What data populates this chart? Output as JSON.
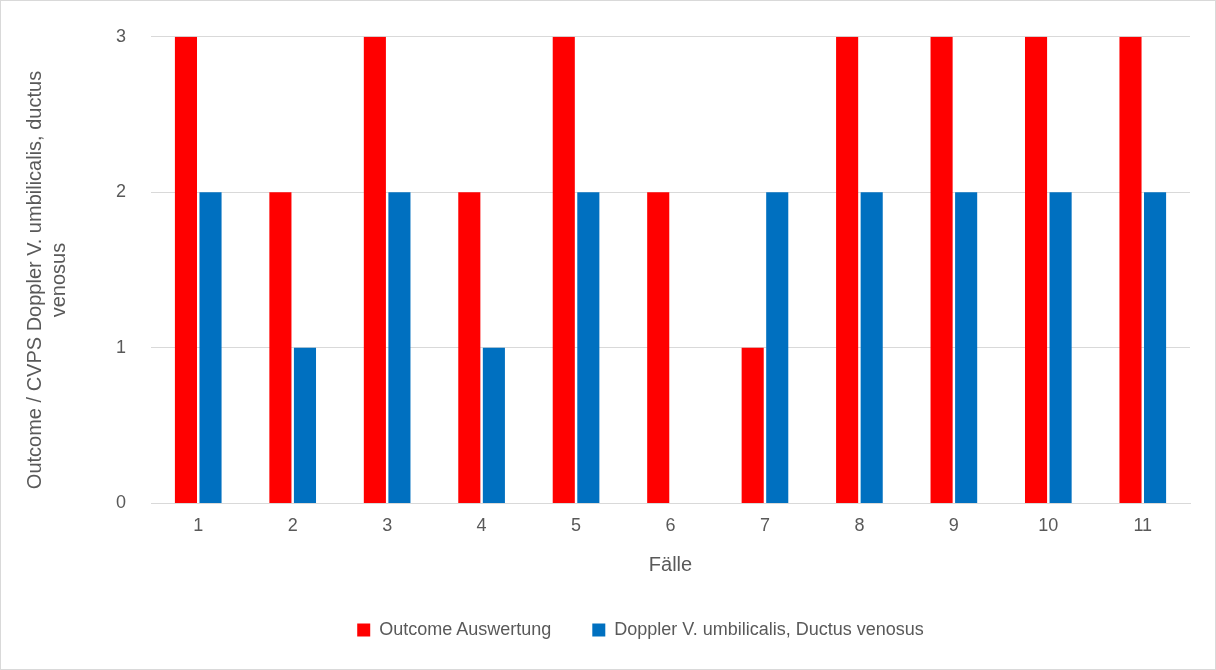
{
  "chart_data": {
    "type": "bar",
    "xlabel": "Fälle",
    "ylabel": "Outcome / CVPS Doppler V. umbilicalis, ductus venosus",
    "categories": [
      "1",
      "2",
      "3",
      "4",
      "5",
      "6",
      "7",
      "8",
      "9",
      "10",
      "11"
    ],
    "series": [
      {
        "name": "Outcome Auswertung",
        "color": "#ff0000",
        "values": [
          3,
          2,
          3,
          2,
          3,
          2,
          1,
          3,
          3,
          3,
          3
        ]
      },
      {
        "name": "Doppler V. umbilicalis, Ductus venosus",
        "color": "#0070c0",
        "values": [
          2,
          1,
          2,
          1,
          2,
          0,
          2,
          2,
          2,
          2,
          2
        ]
      }
    ],
    "ylim": [
      0,
      3
    ],
    "yticks": [
      0,
      1,
      2,
      3
    ],
    "grid": "y",
    "legend": "bottom"
  }
}
